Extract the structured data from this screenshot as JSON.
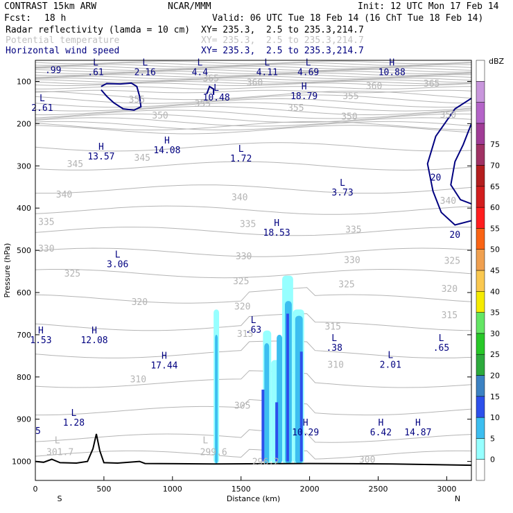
{
  "header": {
    "model": "CONTRAST 15km ARW",
    "center": "NCAR/MMM",
    "init": "Init: 12 UTC Mon 17 Feb 14",
    "fcst_label": "Fcst:",
    "fcst_value": "18 h",
    "valid": "Valid: 06 UTC Tue 18 Feb 14 (16 ChT Tue 18 Feb 14)",
    "field1": "Radar reflectivity (lamda = 10 cm)",
    "field1_xy": "XY= 235.3,  2.5 to 235.3,214.7",
    "field2": "Potential temperature",
    "field2_xy": "XY= 235.3,  2.5 to 235.3,214.7",
    "field3": "Horizontal wind speed",
    "field3_xy": "XY= 235.3,  2.5 to 235.3,214.7"
  },
  "chart_data": {
    "type": "cross-section",
    "xlabel": "Distance (km)",
    "ylabel": "Pressure (hPa)",
    "xlim": [
      0,
      3180
    ],
    "ylim": [
      1045,
      50
    ],
    "x_ticks": [
      0,
      500,
      1000,
      1500,
      2000,
      2500,
      3000
    ],
    "y_ticks": [
      100,
      200,
      300,
      400,
      500,
      600,
      700,
      800,
      900,
      1000
    ],
    "x_end_labels": {
      "left": "S",
      "right": "N"
    },
    "colorbar": {
      "title": "dBZ",
      "levels": [
        0,
        5,
        10,
        15,
        20,
        25,
        30,
        35,
        40,
        45,
        50,
        55,
        60,
        65,
        70,
        75
      ],
      "colors": [
        "#ffffff",
        "#96ffff",
        "#3cbef0",
        "#2d50eb",
        "#3c82c3",
        "#2daa3c",
        "#28c828",
        "#64e664",
        "#f5eb00",
        "#fac850",
        "#f0a050",
        "#fa6414",
        "#ff1e1e",
        "#d21e1e",
        "#b41e1e",
        "#a03264",
        "#a03c96",
        "#b464c8",
        "#c896dc",
        "#ffffff"
      ]
    },
    "theta_labels": [
      {
        "text": "365",
        "x": 1280,
        "p": 100
      },
      {
        "text": "360",
        "x": 1600,
        "p": 110
      },
      {
        "text": "365",
        "x": 2890,
        "p": 112
      },
      {
        "text": "360",
        "x": 2470,
        "p": 118
      },
      {
        "text": "355",
        "x": 740,
        "p": 150
      },
      {
        "text": "355",
        "x": 1220,
        "p": 160
      },
      {
        "text": "355",
        "x": 1900,
        "p": 170
      },
      {
        "text": "355",
        "x": 2300,
        "p": 142
      },
      {
        "text": "350",
        "x": 910,
        "p": 188
      },
      {
        "text": "350",
        "x": 2290,
        "p": 190
      },
      {
        "text": "350",
        "x": 3010,
        "p": 186
      },
      {
        "text": "345",
        "x": 290,
        "p": 303
      },
      {
        "text": "345",
        "x": 780,
        "p": 288
      },
      {
        "text": "340",
        "x": 210,
        "p": 375
      },
      {
        "text": "340",
        "x": 1490,
        "p": 382
      },
      {
        "text": "340",
        "x": 3010,
        "p": 390
      },
      {
        "text": "335",
        "x": 80,
        "p": 440
      },
      {
        "text": "335",
        "x": 1550,
        "p": 445
      },
      {
        "text": "335",
        "x": 2320,
        "p": 458
      },
      {
        "text": "330",
        "x": 80,
        "p": 503
      },
      {
        "text": "330",
        "x": 1520,
        "p": 521
      },
      {
        "text": "330",
        "x": 2310,
        "p": 530
      },
      {
        "text": "325",
        "x": 270,
        "p": 562
      },
      {
        "text": "325",
        "x": 1500,
        "p": 580
      },
      {
        "text": "325",
        "x": 2270,
        "p": 588
      },
      {
        "text": "325",
        "x": 3040,
        "p": 532
      },
      {
        "text": "320",
        "x": 760,
        "p": 630
      },
      {
        "text": "320",
        "x": 1510,
        "p": 640
      },
      {
        "text": "320",
        "x": 3020,
        "p": 598
      },
      {
        "text": "315",
        "x": 1530,
        "p": 705
      },
      {
        "text": "315",
        "x": 2170,
        "p": 688
      },
      {
        "text": "315",
        "x": 3020,
        "p": 661
      },
      {
        "text": "310",
        "x": 750,
        "p": 813
      },
      {
        "text": "310",
        "x": 2190,
        "p": 778
      },
      {
        "text": "305",
        "x": 1510,
        "p": 875
      },
      {
        "text": "300",
        "x": 2420,
        "p": 1003
      }
    ],
    "hl_labels": [
      {
        "mark": "",
        "value": ".99",
        "x": 130,
        "p": 80
      },
      {
        "mark": "L",
        "value": ".61",
        "x": 440,
        "p": 85
      },
      {
        "mark": "L",
        "value": "2.16",
        "x": 800,
        "p": 85
      },
      {
        "mark": "L",
        "value": "4.4",
        "x": 1200,
        "p": 85
      },
      {
        "mark": "L",
        "value": "4.11",
        "x": 1690,
        "p": 85
      },
      {
        "mark": "L",
        "value": "4.69",
        "x": 1990,
        "p": 85
      },
      {
        "mark": "H",
        "value": "10.88",
        "x": 2600,
        "p": 85
      },
      {
        "mark": "L",
        "value": "10.48",
        "x": 1320,
        "p": 145
      },
      {
        "mark": "H",
        "value": "18.79",
        "x": 1960,
        "p": 142
      },
      {
        "mark": "L",
        "value": "2.61",
        "x": 50,
        "p": 170
      },
      {
        "mark": "H",
        "value": "13.57",
        "x": 480,
        "p": 285
      },
      {
        "mark": "H",
        "value": "14.08",
        "x": 960,
        "p": 270
      },
      {
        "mark": "L",
        "value": "1.72",
        "x": 1500,
        "p": 290
      },
      {
        "mark": "L",
        "value": "3.73",
        "x": 2240,
        "p": 370
      },
      {
        "mark": "H",
        "value": "18.53",
        "x": 1760,
        "p": 465
      },
      {
        "mark": "L",
        "value": "3.06",
        "x": 600,
        "p": 540
      },
      {
        "mark": "L",
        "value": ".63",
        "x": 1590,
        "p": 695
      },
      {
        "mark": "H",
        "value": "12.08",
        "x": 430,
        "p": 720
      },
      {
        "mark": "H",
        "value": "1.53",
        "x": 40,
        "p": 720
      },
      {
        "mark": "L",
        "value": ".38",
        "x": 2180,
        "p": 738
      },
      {
        "mark": "L",
        "value": ".65",
        "x": 2960,
        "p": 738
      },
      {
        "mark": "H",
        "value": "17.44",
        "x": 940,
        "p": 780
      },
      {
        "mark": "L",
        "value": "2.01",
        "x": 2590,
        "p": 778
      },
      {
        "mark": "L",
        "value": "1.28",
        "x": 280,
        "p": 915
      },
      {
        "mark": "H",
        "value": "10.29",
        "x": 1970,
        "p": 938
      },
      {
        "mark": "H",
        "value": "6.42",
        "x": 2520,
        "p": 938
      },
      {
        "mark": "H",
        "value": "14.87",
        "x": 2790,
        "p": 938
      },
      {
        "mark": "",
        "value": "5",
        "x": 20,
        "p": 935
      }
    ],
    "gray_hl_labels": [
      {
        "text": "L",
        "x": 160,
        "p": 957
      },
      {
        "text": "301.7",
        "x": 180,
        "p": 985
      },
      {
        "text": "L",
        "x": 1240,
        "p": 957
      },
      {
        "text": "299.6",
        "x": 1300,
        "p": 985
      },
      {
        "text": "296.2",
        "x": 1680,
        "p": 1008
      }
    ],
    "wind_contour_labels": [
      {
        "text": "20",
        "x": 2920,
        "p": 335
      },
      {
        "text": "20",
        "x": 3060,
        "p": 470
      }
    ]
  }
}
